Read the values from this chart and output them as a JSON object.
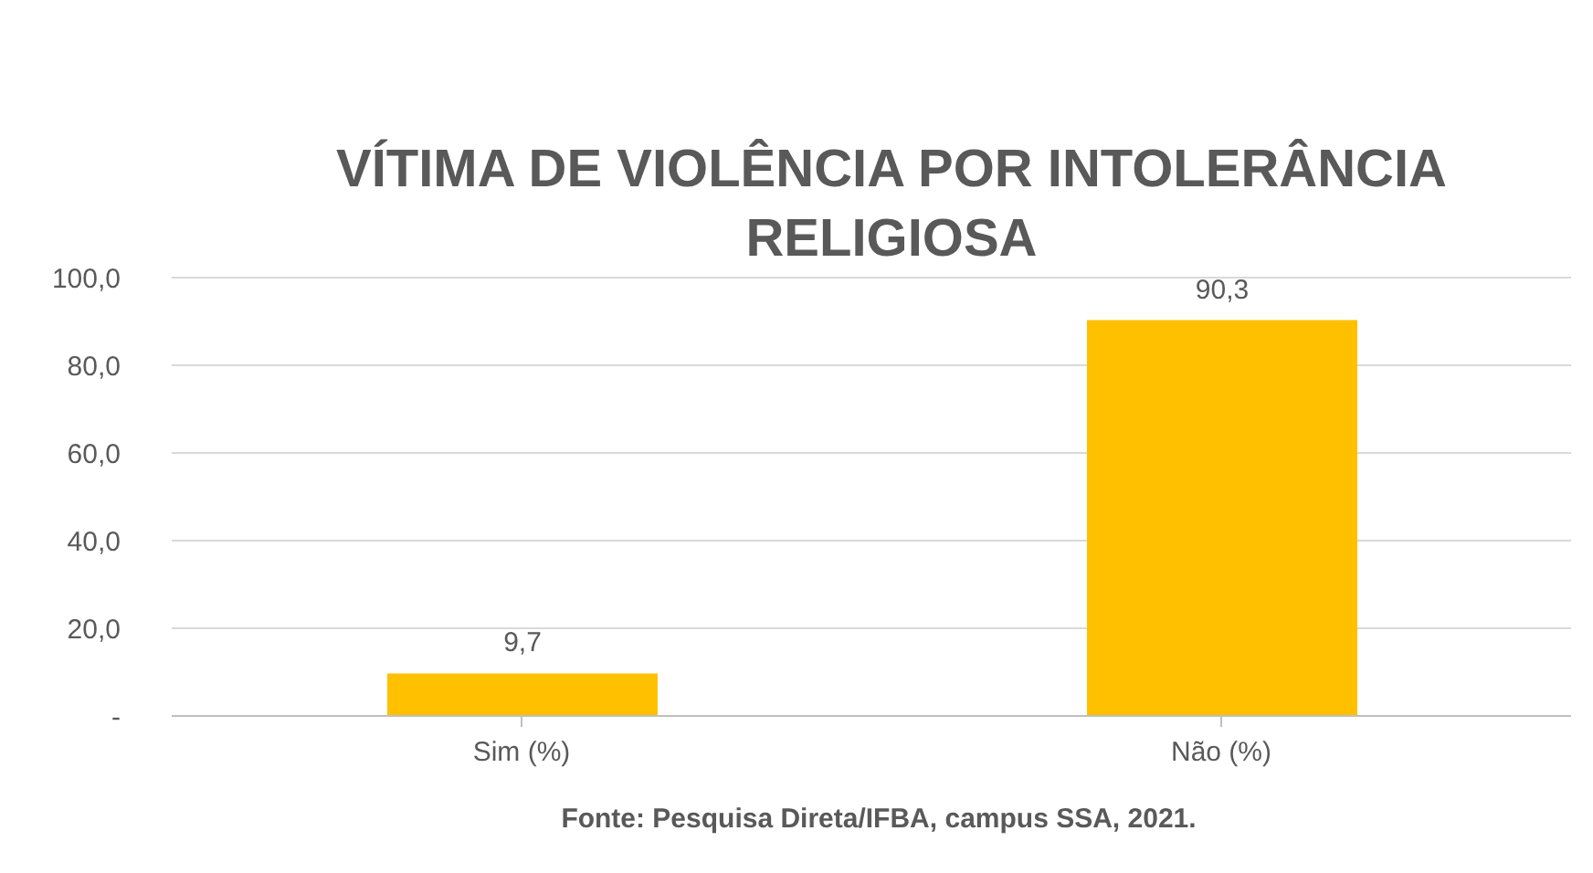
{
  "chart_data": {
    "type": "bar",
    "title": "VÍTIMA DE VIOLÊNCIA POR INTOLERÂNCIA RELIGIOSA",
    "categories": [
      "Sim (%)",
      "Não (%)"
    ],
    "values": [
      9.7,
      90.3
    ],
    "value_labels": [
      "9,7",
      "90,3"
    ],
    "color": "#ffc000",
    "ylim": [
      0,
      100
    ],
    "yticks": [
      {
        "value": 0,
        "label": "-"
      },
      {
        "value": 20,
        "label": "20,0"
      },
      {
        "value": 40,
        "label": "40,0"
      },
      {
        "value": 60,
        "label": "60,0"
      },
      {
        "value": 80,
        "label": "80,0"
      },
      {
        "value": 100,
        "label": "100,0"
      }
    ],
    "grid": "y",
    "annotations": [
      "Fonte: Pesquisa Direta/IFBA, campus SSA, 2021."
    ]
  }
}
